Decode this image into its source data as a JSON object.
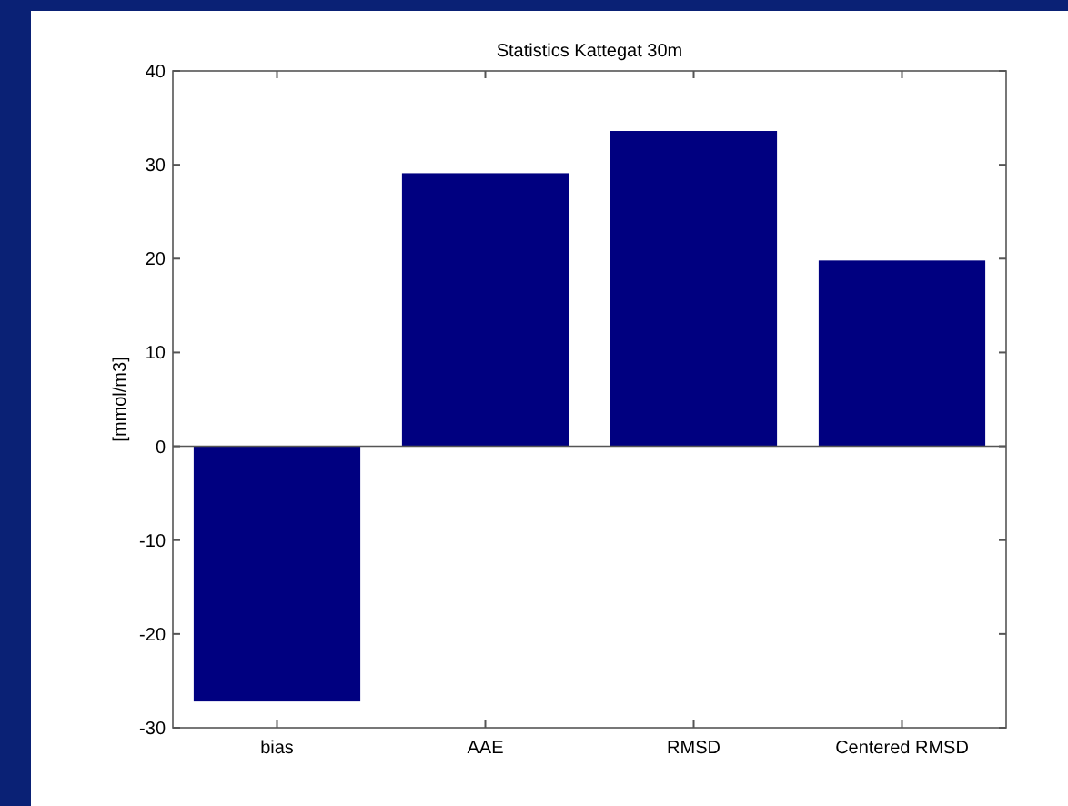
{
  "chart_data": {
    "type": "bar",
    "title": "Statistics Kattegat 30m",
    "ylabel": "[mmol/m3]",
    "categories": [
      "bias",
      "AAE",
      "RMSD",
      "Centered RMSD"
    ],
    "values": [
      -27.2,
      29.1,
      33.6,
      19.8
    ],
    "color": "#000080",
    "ylim": [
      -30,
      40
    ],
    "yticks": [
      -30,
      -20,
      -10,
      0,
      10,
      20,
      30,
      40
    ]
  }
}
